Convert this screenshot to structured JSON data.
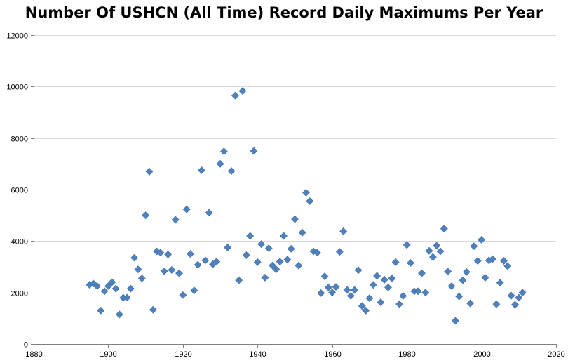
{
  "chart_data": {
    "type": "scatter",
    "title": "Number Of USHCN (All Time) Record Daily Maximums Per Year",
    "xlabel": "",
    "ylabel": "",
    "xlim": [
      1880,
      2020
    ],
    "ylim": [
      0,
      12000
    ],
    "x_ticks": [
      "1880",
      "1900",
      "1920",
      "1940",
      "1960",
      "1980",
      "2000",
      "2020"
    ],
    "y_ticks": [
      "0",
      "2000",
      "4000",
      "6000",
      "8000",
      "10000",
      "12000"
    ],
    "grid": "horizontal",
    "marker_color": "#4f81bd",
    "marker": "diamond",
    "points": [
      [
        1895,
        2300
      ],
      [
        1896,
        2350
      ],
      [
        1897,
        2250
      ],
      [
        1898,
        1300
      ],
      [
        1899,
        2050
      ],
      [
        1900,
        2250
      ],
      [
        1901,
        2400
      ],
      [
        1902,
        2150
      ],
      [
        1903,
        1150
      ],
      [
        1904,
        1800
      ],
      [
        1905,
        1800
      ],
      [
        1906,
        2150
      ],
      [
        1907,
        3350
      ],
      [
        1908,
        2900
      ],
      [
        1909,
        2550
      ],
      [
        1910,
        5000
      ],
      [
        1911,
        6700
      ],
      [
        1912,
        1330
      ],
      [
        1913,
        3600
      ],
      [
        1914,
        3550
      ],
      [
        1915,
        2830
      ],
      [
        1916,
        3480
      ],
      [
        1917,
        2880
      ],
      [
        1918,
        4830
      ],
      [
        1919,
        2750
      ],
      [
        1920,
        1900
      ],
      [
        1921,
        5230
      ],
      [
        1922,
        3500
      ],
      [
        1923,
        2080
      ],
      [
        1924,
        3080
      ],
      [
        1925,
        6750
      ],
      [
        1926,
        3250
      ],
      [
        1927,
        5100
      ],
      [
        1928,
        3100
      ],
      [
        1929,
        3200
      ],
      [
        1930,
        7000
      ],
      [
        1931,
        7480
      ],
      [
        1932,
        3750
      ],
      [
        1933,
        6720
      ],
      [
        1934,
        9650
      ],
      [
        1935,
        2480
      ],
      [
        1936,
        9830
      ],
      [
        1937,
        3450
      ],
      [
        1938,
        4200
      ],
      [
        1939,
        7500
      ],
      [
        1940,
        3180
      ],
      [
        1941,
        3880
      ],
      [
        1942,
        2580
      ],
      [
        1943,
        3720
      ],
      [
        1944,
        3050
      ],
      [
        1945,
        2900
      ],
      [
        1946,
        3200
      ],
      [
        1947,
        4200
      ],
      [
        1948,
        3280
      ],
      [
        1949,
        3700
      ],
      [
        1950,
        4850
      ],
      [
        1951,
        3050
      ],
      [
        1952,
        4330
      ],
      [
        1953,
        5880
      ],
      [
        1954,
        5550
      ],
      [
        1955,
        3600
      ],
      [
        1956,
        3550
      ],
      [
        1957,
        1980
      ],
      [
        1958,
        2630
      ],
      [
        1959,
        2200
      ],
      [
        1960,
        2000
      ],
      [
        1961,
        2220
      ],
      [
        1962,
        3580
      ],
      [
        1963,
        4380
      ],
      [
        1964,
        2100
      ],
      [
        1965,
        1870
      ],
      [
        1966,
        2100
      ],
      [
        1967,
        2870
      ],
      [
        1968,
        1480
      ],
      [
        1969,
        1300
      ],
      [
        1970,
        1780
      ],
      [
        1971,
        2300
      ],
      [
        1972,
        2650
      ],
      [
        1973,
        1620
      ],
      [
        1974,
        2500
      ],
      [
        1975,
        2200
      ],
      [
        1976,
        2550
      ],
      [
        1977,
        3180
      ],
      [
        1978,
        1550
      ],
      [
        1979,
        1870
      ],
      [
        1980,
        3850
      ],
      [
        1981,
        3150
      ],
      [
        1982,
        2050
      ],
      [
        1983,
        2050
      ],
      [
        1984,
        2750
      ],
      [
        1985,
        2000
      ],
      [
        1986,
        3620
      ],
      [
        1987,
        3380
      ],
      [
        1988,
        3820
      ],
      [
        1989,
        3600
      ],
      [
        1990,
        4480
      ],
      [
        1991,
        2820
      ],
      [
        1992,
        2250
      ],
      [
        1993,
        900
      ],
      [
        1994,
        1850
      ],
      [
        1995,
        2480
      ],
      [
        1996,
        2800
      ],
      [
        1997,
        1580
      ],
      [
        1998,
        3800
      ],
      [
        1999,
        3230
      ],
      [
        2000,
        4050
      ],
      [
        2001,
        2580
      ],
      [
        2002,
        3250
      ],
      [
        2003,
        3300
      ],
      [
        2004,
        1550
      ],
      [
        2005,
        2380
      ],
      [
        2006,
        3230
      ],
      [
        2007,
        3030
      ],
      [
        2008,
        1880
      ],
      [
        2009,
        1530
      ],
      [
        2010,
        1800
      ],
      [
        2011,
        2000
      ]
    ]
  }
}
